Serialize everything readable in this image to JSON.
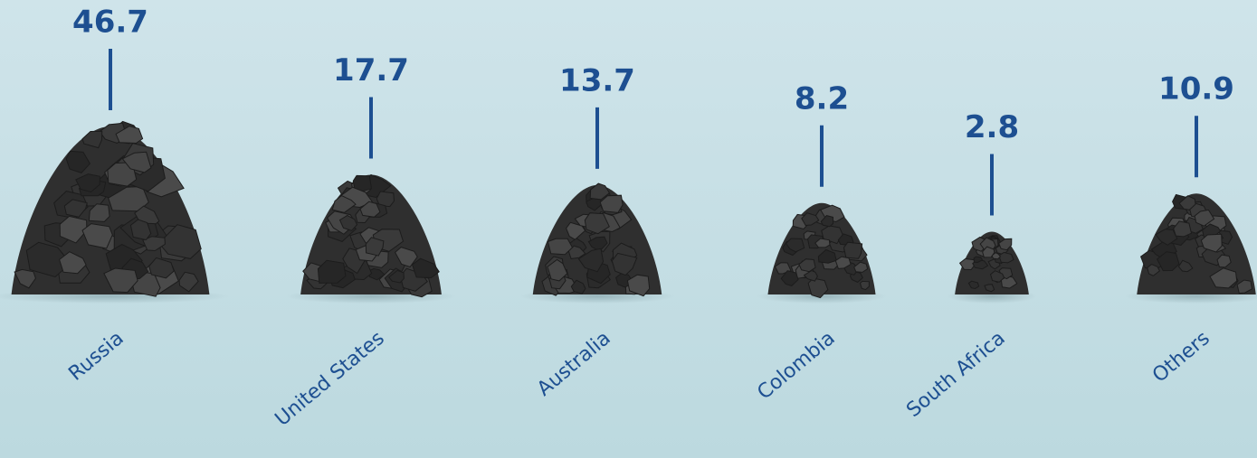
{
  "chart_data": {
    "type": "pile",
    "categories": [
      "Russia",
      "United States",
      "Australia",
      "Colombia",
      "South Africa",
      "Others"
    ],
    "values": [
      46.7,
      17.7,
      13.7,
      8.2,
      2.8,
      10.9
    ],
    "color": "#2f2f2f",
    "label_color": "#1d4f91"
  }
}
